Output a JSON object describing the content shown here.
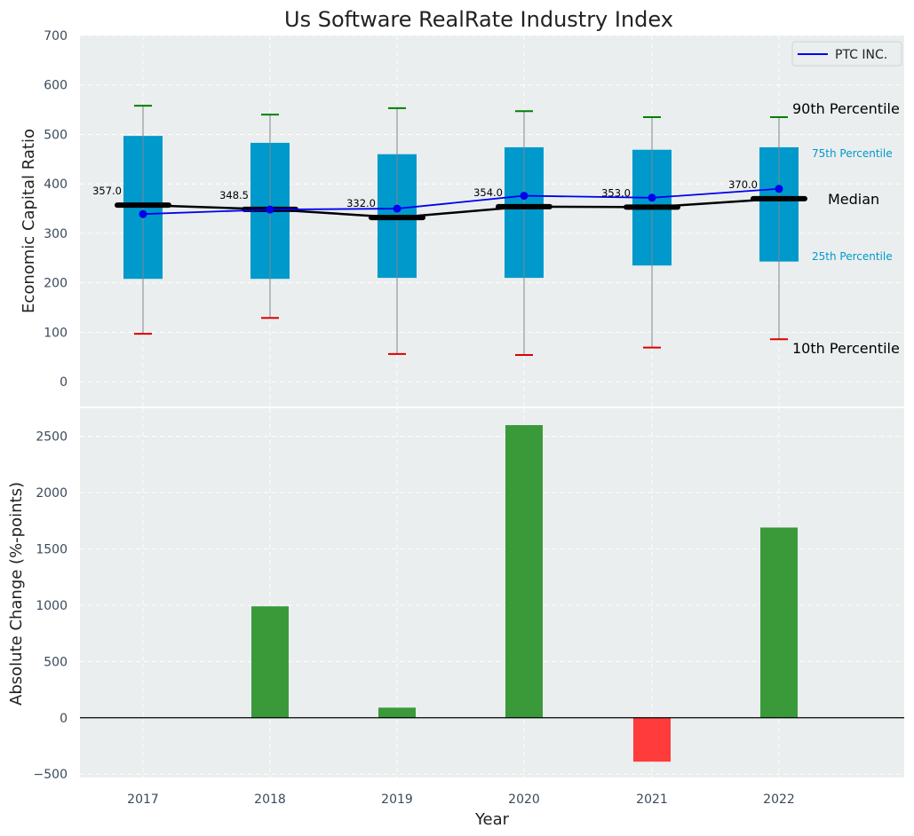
{
  "colors": {
    "panel_bg": "#eaeeee",
    "box_fill": "#0099cc",
    "company_line": "#0000ee",
    "median_line": "#000000",
    "whisker_top": "#008000",
    "whisker_bottom": "#dd0000",
    "bar_positive": "#3a9a3a",
    "bar_negative": "#ff3b3b",
    "percentile_label_blue": "#0099cc"
  },
  "chart_data": [
    {
      "type": "box",
      "title": "Us Software RealRate Industry Index",
      "ylabel": "Economic Capital Ratio",
      "ylim": [
        -50,
        700
      ],
      "yticks": [
        "0",
        "100",
        "200",
        "300",
        "400",
        "500",
        "600",
        "700"
      ],
      "categories": [
        "2017",
        "2018",
        "2019",
        "2020",
        "2021",
        "2022"
      ],
      "p10": [
        97,
        129,
        56,
        54,
        69,
        86
      ],
      "p25": [
        208,
        208,
        210,
        210,
        235,
        243
      ],
      "median": [
        357,
        348.5,
        332,
        354,
        353,
        370
      ],
      "p75": [
        497,
        483,
        460,
        474,
        469,
        474
      ],
      "p90": [
        558,
        540,
        553,
        547,
        535,
        535
      ],
      "median_labels": [
        "357.0",
        "348.5",
        "332.0",
        "354.0",
        "353.0",
        "370.0"
      ],
      "series": [
        {
          "name": "PTC INC.",
          "values": [
            339,
            348,
            350,
            376,
            372,
            390
          ]
        }
      ],
      "legend": {
        "position": "top-right",
        "entries": [
          "PTC INC."
        ]
      },
      "annotations": {
        "p90": "90th Percentile",
        "p75": "75th Percentile",
        "median": "Median",
        "p25": "25th Percentile",
        "p10": "10th Percentile"
      },
      "grid": true
    },
    {
      "type": "bar",
      "ylabel": "Absolute Change (%-points)",
      "xlabel": "Year",
      "ylim": [
        -530,
        2750
      ],
      "yticks": [
        "−500",
        "0",
        "500",
        "1000",
        "1500",
        "2000",
        "2500"
      ],
      "categories": [
        "2017",
        "2018",
        "2019",
        "2020",
        "2021",
        "2022"
      ],
      "values": [
        0,
        990,
        90,
        2600,
        -390,
        1690
      ],
      "grid": true
    }
  ]
}
